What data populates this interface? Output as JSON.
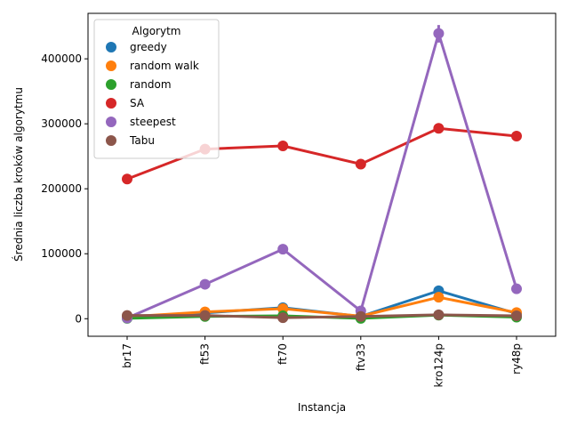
{
  "chart_data": {
    "type": "line",
    "xlabel": "Instancja",
    "ylabel": "Średnia liczba kroków algorytmu",
    "categories": [
      "br17",
      "ft53",
      "ft70",
      "ftv33",
      "kro124p",
      "ry48p"
    ],
    "y_ticks": [
      0,
      100000,
      200000,
      300000,
      400000
    ],
    "y_tick_labels": [
      "0",
      "100000",
      "200000",
      "300000",
      "400000"
    ],
    "ylim": [
      -27000,
      470000
    ],
    "grid": false,
    "legend": {
      "title": "Algorytm",
      "placement": "upper-left"
    },
    "series": [
      {
        "name": "greedy",
        "color": "#1f77b4",
        "values": [
          2000,
          9000,
          17000,
          3500,
          43000,
          8000
        ]
      },
      {
        "name": "random walk",
        "color": "#ff7f0e",
        "values": [
          3000,
          10500,
          15500,
          4000,
          33000,
          9500
        ]
      },
      {
        "name": "random",
        "color": "#2ca02c",
        "values": [
          500,
          3500,
          4500,
          500,
          5500,
          2500
        ]
      },
      {
        "name": "SA",
        "color": "#d62728",
        "values": [
          215000,
          261000,
          266000,
          238000,
          293000,
          281000
        ]
      },
      {
        "name": "steepest",
        "color": "#9467bd",
        "values": [
          1000,
          53000,
          107000,
          12000,
          439000,
          46000
        ]
      },
      {
        "name": "Tabu",
        "color": "#8c564b",
        "values": [
          5000,
          5000,
          1500,
          3500,
          6000,
          4500
        ]
      }
    ],
    "error_bar": {
      "series": "steepest",
      "category": "kro124p",
      "low": 425000,
      "high": 452000
    }
  }
}
